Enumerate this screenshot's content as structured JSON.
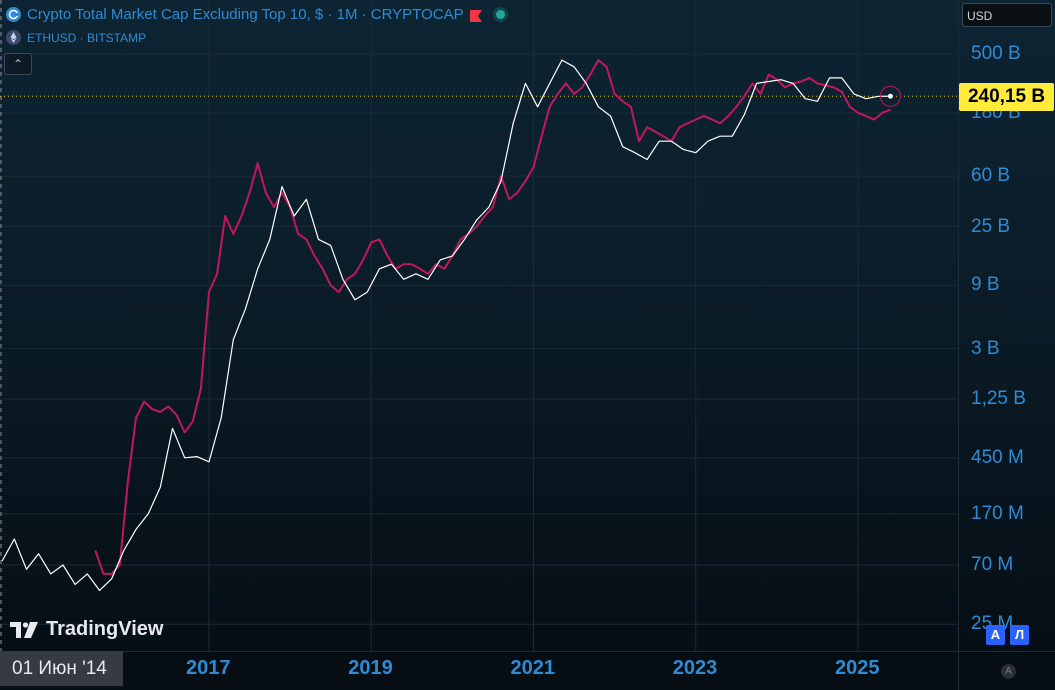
{
  "legend": {
    "main_title": "Crypto Total Market Cap Excluding Top 10, $ · 1M · CRYPTOCAP",
    "compare_symbol": "ETHUSD · BITSTAMP"
  },
  "toolbar": {
    "currency": "USD"
  },
  "price_label": "240,15 B",
  "crosshair_date": "01 Июн '14",
  "logo_text": "TradingView",
  "scale_buttons": {
    "auto": "А",
    "log": "Л"
  },
  "colors": {
    "main_series": "#ffffff",
    "compare_series": "#c2185b",
    "price_label_bg": "#ffeb3b",
    "axis_text": "#2f8bd4"
  },
  "chart_data": {
    "type": "line",
    "scale": "log",
    "grid": true,
    "y_tick_labels": [
      "500 B",
      "180 B",
      "60 B",
      "25 B",
      "9 B",
      "3 B",
      "1,25 B",
      "450 M",
      "170 M",
      "70 M",
      "25 M"
    ],
    "y_tick_values": [
      500,
      180,
      60,
      25,
      9,
      3,
      1.25,
      0.45,
      0.17,
      0.07,
      0.025
    ],
    "x_tick_labels": [
      "2017",
      "2019",
      "2021",
      "2023",
      "2025"
    ],
    "x_tick_values": [
      2017,
      2019,
      2021,
      2023,
      2025
    ],
    "last_value": 240.15,
    "series": [
      {
        "name": "Crypto Total Market Cap Excluding Top 10",
        "color": "#ffffff",
        "x": [
          2014.45,
          2014.6,
          2014.75,
          2014.9,
          2015.05,
          2015.2,
          2015.35,
          2015.5,
          2015.65,
          2015.8,
          2015.95,
          2016.1,
          2016.25,
          2016.4,
          2016.55,
          2016.7,
          2016.85,
          2017.0,
          2017.15,
          2017.3,
          2017.45,
          2017.6,
          2017.75,
          2017.9,
          2018.05,
          2018.2,
          2018.35,
          2018.5,
          2018.65,
          2018.8,
          2018.95,
          2019.1,
          2019.25,
          2019.4,
          2019.55,
          2019.7,
          2019.85,
          2020.0,
          2020.15,
          2020.3,
          2020.45,
          2020.6,
          2020.75,
          2020.9,
          2021.05,
          2021.2,
          2021.35,
          2021.5,
          2021.65,
          2021.8,
          2021.95,
          2022.1,
          2022.25,
          2022.4,
          2022.55,
          2022.7,
          2022.85,
          2023.0,
          2023.15,
          2023.3,
          2023.45,
          2023.6,
          2023.75,
          2023.9,
          2024.05,
          2024.2,
          2024.35,
          2024.5,
          2024.65,
          2024.8,
          2024.95,
          2025.1,
          2025.25,
          2025.4
        ],
        "values": [
          0.075,
          0.11,
          0.065,
          0.085,
          0.06,
          0.07,
          0.05,
          0.06,
          0.045,
          0.055,
          0.09,
          0.13,
          0.17,
          0.27,
          0.75,
          0.45,
          0.46,
          0.42,
          0.9,
          3.5,
          6.0,
          12.0,
          20.0,
          50.0,
          30.0,
          40.0,
          20.0,
          18.0,
          10.0,
          7.0,
          8.0,
          12.0,
          13.0,
          10.0,
          11.0,
          10.0,
          14.0,
          15.0,
          20.0,
          28.0,
          35.0,
          55.0,
          150.0,
          300.0,
          200.0,
          300.0,
          450.0,
          400.0,
          300.0,
          200.0,
          170.0,
          100.0,
          90.0,
          80.0,
          110.0,
          110.0,
          95.0,
          90.0,
          110.0,
          120.0,
          120.0,
          175.0,
          300.0,
          310.0,
          320.0,
          300.0,
          230.0,
          220.0,
          330.0,
          330.0,
          250.0,
          230.0,
          240.0,
          240.15
        ]
      },
      {
        "name": "ETHUSD",
        "color": "#c2185b",
        "x": [
          2015.6,
          2015.7,
          2015.8,
          2015.9,
          2016.0,
          2016.1,
          2016.2,
          2016.3,
          2016.4,
          2016.5,
          2016.6,
          2016.7,
          2016.8,
          2016.9,
          2017.0,
          2017.1,
          2017.2,
          2017.3,
          2017.4,
          2017.5,
          2017.6,
          2017.7,
          2017.8,
          2017.9,
          2018.0,
          2018.1,
          2018.2,
          2018.3,
          2018.4,
          2018.5,
          2018.6,
          2018.7,
          2018.8,
          2018.9,
          2019.0,
          2019.1,
          2019.2,
          2019.3,
          2019.4,
          2019.5,
          2019.6,
          2019.7,
          2019.8,
          2019.9,
          2020.0,
          2020.1,
          2020.2,
          2020.3,
          2020.4,
          2020.5,
          2020.6,
          2020.7,
          2020.8,
          2020.9,
          2021.0,
          2021.1,
          2021.2,
          2021.3,
          2021.4,
          2021.5,
          2021.6,
          2021.7,
          2021.8,
          2021.9,
          2022.0,
          2022.1,
          2022.2,
          2022.3,
          2022.4,
          2022.5,
          2022.6,
          2022.7,
          2022.8,
          2022.9,
          2023.0,
          2023.1,
          2023.2,
          2023.3,
          2023.4,
          2023.5,
          2023.6,
          2023.7,
          2023.8,
          2023.9,
          2024.0,
          2024.1,
          2024.2,
          2024.3,
          2024.4,
          2024.5,
          2024.6,
          2024.7,
          2024.8,
          2024.9,
          2025.0,
          2025.1,
          2025.2,
          2025.3,
          2025.4
        ],
        "values": [
          0.09,
          0.06,
          0.06,
          0.07,
          0.3,
          0.9,
          1.2,
          1.05,
          1.0,
          1.1,
          0.95,
          0.7,
          0.85,
          1.5,
          8.0,
          11.0,
          30.0,
          22.0,
          30.0,
          45.0,
          75.0,
          45.0,
          35.0,
          45.0,
          35.0,
          22.0,
          20.0,
          15.0,
          12.0,
          9.0,
          8.0,
          10.0,
          11.0,
          14.0,
          19.0,
          20.0,
          15.0,
          12.0,
          13.0,
          13.0,
          12.0,
          11.0,
          13.0,
          12.0,
          15.0,
          20.0,
          22.0,
          25.0,
          30.0,
          35.0,
          60.0,
          40.0,
          45.0,
          55.0,
          70.0,
          120.0,
          200.0,
          250.0,
          300.0,
          250.0,
          280.0,
          350.0,
          450.0,
          400.0,
          250.0,
          220.0,
          200.0,
          110.0,
          140.0,
          130.0,
          120.0,
          110.0,
          140.0,
          150.0,
          160.0,
          170.0,
          160.0,
          150.0,
          170.0,
          200.0,
          240.0,
          300.0,
          250.0,
          350.0,
          320.0,
          280.0,
          300.0,
          310.0,
          330.0,
          300.0,
          290.0,
          280.0,
          260.0,
          200.0,
          180.0,
          170.0,
          160.0,
          180.0,
          190.0
        ]
      }
    ]
  }
}
